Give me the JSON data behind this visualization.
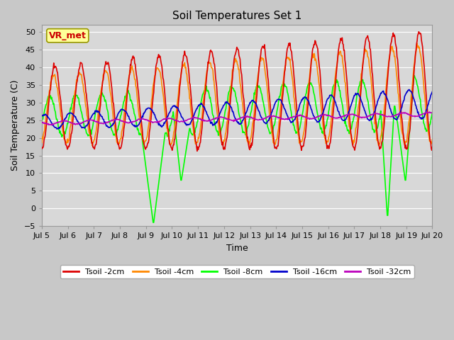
{
  "title": "Soil Temperatures Set 1",
  "xlabel": "Time",
  "ylabel": "Soil Temperature (C)",
  "ylim": [
    -5,
    52
  ],
  "yticks": [
    -5,
    0,
    5,
    10,
    15,
    20,
    25,
    30,
    35,
    40,
    45,
    50
  ],
  "xtick_labels": [
    "Jul 5",
    "Jul 6",
    "Jul 7",
    "Jul 8",
    "Jul 9",
    "Jul 10",
    "Jul 11",
    "Jul 12",
    "Jul 13",
    "Jul 14",
    "Jul 15",
    "Jul 16",
    "Jul 17",
    "Jul 18",
    "Jul 19",
    "Jul 20"
  ],
  "legend_entries": [
    "Tsoil -2cm",
    "Tsoil -4cm",
    "Tsoil -8cm",
    "Tsoil -16cm",
    "Tsoil -32cm"
  ],
  "annotation_text": "VR_met",
  "annotation_color": "#cc0000",
  "annotation_bg": "#ffff99",
  "annotation_border": "#999900",
  "series_colors": [
    "#dd0000",
    "#ff8800",
    "#00ff00",
    "#0000cc",
    "#bb00bb"
  ],
  "fig_bg": "#c8c8c8",
  "plot_bg": "#d8d8d8",
  "grid_color": "#ffffff",
  "line_width": 1.2,
  "title_fontsize": 11,
  "axis_fontsize": 9,
  "tick_fontsize": 8
}
